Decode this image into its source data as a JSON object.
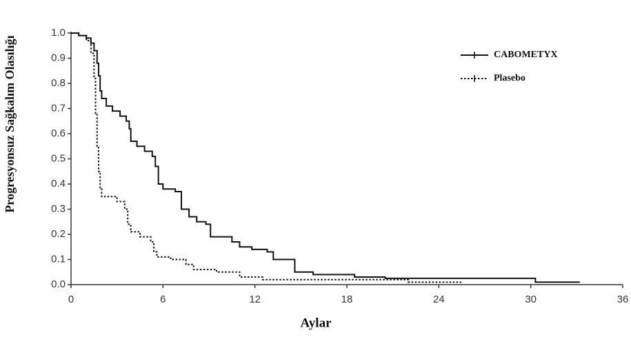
{
  "chart_data": {
    "type": "step",
    "x_label": "Aylar",
    "y_label": "Progresyonsuz Sağkalım Olasılığı",
    "xlim": [
      0,
      36
    ],
    "xticks": [
      0,
      6,
      12,
      18,
      24,
      30,
      36
    ],
    "ylim": [
      0,
      1
    ],
    "yticks": [
      {
        "value": 0,
        "label": "0.0"
      },
      0.1,
      0.2,
      0.3,
      0.4,
      0.5,
      0.6,
      0.7,
      0.8,
      0.9,
      {
        "value": 1,
        "label": "1.0"
      }
    ],
    "legend": "upper right",
    "series": [
      {
        "name": "CABOMETYX",
        "color": "#111111",
        "line_style": "solid",
        "x": [
          0,
          0.5,
          1.0,
          1.3,
          1.5,
          1.7,
          1.8,
          1.9,
          2.0,
          2.3,
          2.7,
          3.2,
          3.6,
          3.8,
          3.9,
          4.3,
          4.8,
          5.3,
          5.5,
          5.7,
          6.0,
          6.8,
          7.2,
          7.7,
          8.2,
          8.8,
          9.1,
          10.5,
          11.0,
          11.8,
          12.8,
          13.2,
          14.6,
          15.8,
          18.5,
          20.5,
          30.3,
          33.2
        ],
        "values": [
          1.0,
          0.99,
          0.98,
          0.96,
          0.93,
          0.88,
          0.83,
          0.77,
          0.74,
          0.71,
          0.69,
          0.67,
          0.65,
          0.62,
          0.57,
          0.55,
          0.53,
          0.51,
          0.47,
          0.4,
          0.38,
          0.37,
          0.3,
          0.27,
          0.25,
          0.24,
          0.19,
          0.17,
          0.15,
          0.14,
          0.13,
          0.1,
          0.05,
          0.04,
          0.03,
          0.025,
          0.01,
          0.01
        ]
      },
      {
        "name": "Plasebo",
        "color": "#111111",
        "line_style": "dotted",
        "x": [
          0,
          0.5,
          1.0,
          1.3,
          1.5,
          1.6,
          1.7,
          1.8,
          1.9,
          2.0,
          3.0,
          3.5,
          3.7,
          3.9,
          4.5,
          5.2,
          5.4,
          5.6,
          6.5,
          7.5,
          8.0,
          9.5,
          11.0,
          12.5,
          22.0,
          25.5
        ],
        "values": [
          1.0,
          0.99,
          0.97,
          0.92,
          0.82,
          0.68,
          0.55,
          0.45,
          0.38,
          0.35,
          0.33,
          0.3,
          0.24,
          0.21,
          0.19,
          0.17,
          0.13,
          0.11,
          0.1,
          0.08,
          0.06,
          0.05,
          0.03,
          0.02,
          0.01,
          0.01
        ]
      }
    ]
  }
}
